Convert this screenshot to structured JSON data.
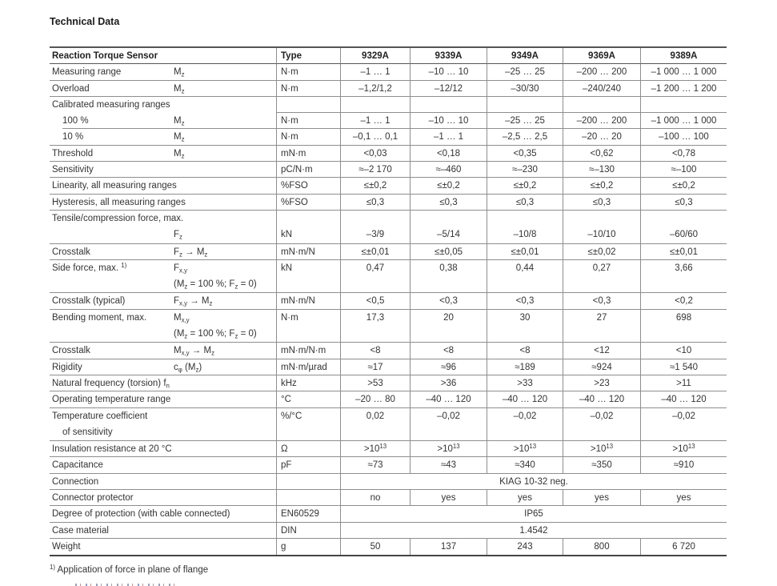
{
  "page": {
    "title": "Technical Data",
    "footnote": "^1)^ Application of force in plane of flange"
  },
  "table": {
    "header": {
      "label": "Reaction Torque Sensor",
      "type": "Type",
      "models": [
        "9329A",
        "9339A",
        "9349A",
        "9369A",
        "9389A"
      ]
    },
    "rows": [
      {
        "label": "Measuring range",
        "symbol": "M~z~",
        "unit": "N·m",
        "values": [
          "–1 … 1",
          "–10 … 10",
          "–25 … 25",
          "–200 … 200",
          "–1 000 … 1 000"
        ]
      },
      {
        "label": "Overload",
        "symbol": "M~z~",
        "unit": "N·m",
        "values": [
          "–1,2/1,2",
          "–12/12",
          "–30/30",
          "–240/240",
          "–1 200 … 1 200"
        ]
      },
      {
        "label": "Calibrated measuring ranges",
        "label_border": "none"
      },
      {
        "label": "100 %",
        "label_indent": true,
        "label_border": "indent",
        "symbol": "M~z~",
        "unit": "N·m",
        "values": [
          "–1 … 1",
          "–10 … 10",
          "–25 … 25",
          "–200 … 200",
          "–1 000 … 1 000"
        ]
      },
      {
        "label": "10 %",
        "label_indent": true,
        "symbol": "M~z~",
        "unit": "N·m",
        "values": [
          "–0,1 … 0,1",
          "–1 … 1",
          "–2,5 … 2,5",
          "–20 … 20",
          "–100 … 100"
        ]
      },
      {
        "label": "Threshold",
        "symbol": "M~z~",
        "unit": "mN·m",
        "values": [
          "<0,03",
          "<0,18",
          "<0,35",
          "<0,62",
          "<0,78"
        ]
      },
      {
        "label": "Sensitivity",
        "unit": "pC/N·m",
        "values": [
          "≈–2 170",
          "≈–460",
          "≈–230",
          "≈–130",
          "≈–100"
        ]
      },
      {
        "label": "Linearity, all measuring ranges",
        "unit": "%FSO",
        "values": [
          "≤±0,2",
          "≤±0,2",
          "≤±0,2",
          "≤±0,2",
          "≤±0,2"
        ]
      },
      {
        "label": "Hysteresis, all measuring ranges",
        "unit": "%FSO",
        "values": [
          "≤0,3",
          "≤0,3",
          "≤0,3",
          "≤0,3",
          "≤0,3"
        ]
      },
      {
        "label": "Tensile/compression force, max.",
        "symbol": "F~z~",
        "symbol_line": 2,
        "unit": "kN",
        "unit_line": 2,
        "value_line": 2,
        "values": [
          "–3/9",
          "–5/14",
          "–10/8",
          "–10/10",
          "–60/60"
        ]
      },
      {
        "label": "Crosstalk",
        "symbol": "F~z~ → M~z~",
        "unit": "mN·m/N",
        "values": [
          "≤±0,01",
          "≤±0,05",
          "≤±0,01",
          "≤±0,02",
          "≤±0,01"
        ]
      },
      {
        "label": "Side force, max. ^1)^",
        "symbol": "F~x,y~",
        "symbol2": "(M~z~ = 100 %; F~z~ = 0)",
        "unit": "kN",
        "values": [
          "0,47",
          "0,38",
          "0,44",
          "0,27",
          "3,66"
        ]
      },
      {
        "label": "Crosstalk (typical)",
        "symbol": "F~x,y~ → M~z~",
        "unit": "mN·m/N",
        "values": [
          "<0,5",
          "<0,3",
          "<0,3",
          "<0,3",
          "<0,2"
        ]
      },
      {
        "label": "Bending moment, max.",
        "symbol": "M~x,y~",
        "symbol2": "(M~z~ = 100 %; F~z~ = 0)",
        "unit": "N·m",
        "values": [
          "17,3",
          "20",
          "30",
          "27",
          "698"
        ]
      },
      {
        "label": "Crosstalk",
        "symbol": "M~x,y~ → M~z~",
        "unit": "mN·m/N·m",
        "values": [
          "<8",
          "<8",
          "<8",
          "<12",
          "<10"
        ]
      },
      {
        "label": "Rigidity",
        "symbol": "c~φ~ (M~z~)",
        "unit": "mN·m/µrad",
        "values": [
          "≈17",
          "≈96",
          "≈189",
          "≈924",
          "≈1 540"
        ]
      },
      {
        "label": "Natural frequency (torsion) f~n~",
        "unit": "kHz",
        "values": [
          ">53",
          ">36",
          ">33",
          ">23",
          ">11"
        ]
      },
      {
        "label": "Operating temperature range",
        "unit": "°C",
        "values": [
          "–20 … 80",
          "–40 … 120",
          "–40 … 120",
          "–40 … 120",
          "–40 … 120"
        ]
      },
      {
        "label": "Temperature coefficient",
        "label2": "of sensitivity",
        "unit": "%/°C",
        "values": [
          "0,02",
          "–0,02",
          "–0,02",
          "–0,02",
          "–0,02"
        ]
      },
      {
        "label": "Insulation resistance at 20 °C",
        "unit": "Ω",
        "values": [
          ">10^13^",
          ">10^13^",
          ">10^13^",
          ">10^13^",
          ">10^13^"
        ]
      },
      {
        "label": "Capacitance",
        "unit": "pF",
        "values": [
          "≈73",
          "≈43",
          "≈340",
          "≈350",
          "≈910"
        ]
      },
      {
        "label": "Connection",
        "span": "KIAG 10-32 neg."
      },
      {
        "label": "Connector protector",
        "values": [
          "no",
          "yes",
          "yes",
          "yes",
          "yes"
        ]
      },
      {
        "label": "Degree of protection (with cable connected)",
        "unit": "EN60529",
        "span": "IP65"
      },
      {
        "label": "Case material",
        "unit": "DIN",
        "span": "1.4542"
      },
      {
        "label": "Weight",
        "unit": "g",
        "values": [
          "50",
          "137",
          "243",
          "800",
          "6 720"
        ]
      }
    ]
  }
}
